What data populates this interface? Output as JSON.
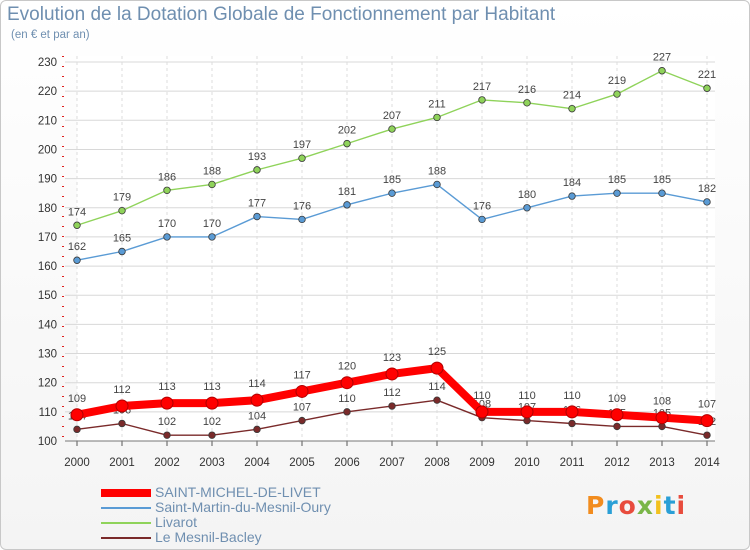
{
  "title": "Evolution de la Dotation Globale de Fonctionnement par Habitant",
  "subtitle": "(en € et par an)",
  "logo": "Proxiti",
  "chart_data": {
    "type": "line",
    "title": "Evolution de la Dotation Globale de Fonctionnement par Habitant",
    "subtitle": "(en € et par an)",
    "xlabel": "",
    "ylabel": "",
    "x": [
      2000,
      2001,
      2002,
      2003,
      2004,
      2005,
      2006,
      2007,
      2008,
      2009,
      2010,
      2011,
      2012,
      2013,
      2014
    ],
    "ylim": [
      100,
      230
    ],
    "yticks": [
      100,
      110,
      120,
      130,
      140,
      150,
      160,
      170,
      180,
      190,
      200,
      210,
      220,
      230
    ],
    "grid": true,
    "legend_position": "bottom-left",
    "series": [
      {
        "name": "SAINT-MICHEL-DE-LIVET",
        "color": "#ff0000",
        "values": [
          109,
          112,
          113,
          113,
          114,
          117,
          120,
          123,
          125,
          110,
          110,
          110,
          109,
          108,
          107
        ]
      },
      {
        "name": "Saint-Martin-du-Mesnil-Oury",
        "color": "#5a9bd5",
        "values": [
          162,
          165,
          170,
          170,
          177,
          176,
          181,
          185,
          188,
          176,
          180,
          184,
          185,
          185,
          182
        ]
      },
      {
        "name": "Livarot",
        "color": "#8fd35a",
        "values": [
          174,
          179,
          186,
          188,
          193,
          197,
          202,
          207,
          211,
          217,
          216,
          214,
          219,
          227,
          221
        ]
      },
      {
        "name": "Le Mesnil-Bacley",
        "color": "#7a2a2a",
        "values": [
          104,
          106,
          102,
          102,
          104,
          107,
          110,
          112,
          114,
          108,
          107,
          106,
          105,
          105,
          102
        ]
      }
    ]
  }
}
